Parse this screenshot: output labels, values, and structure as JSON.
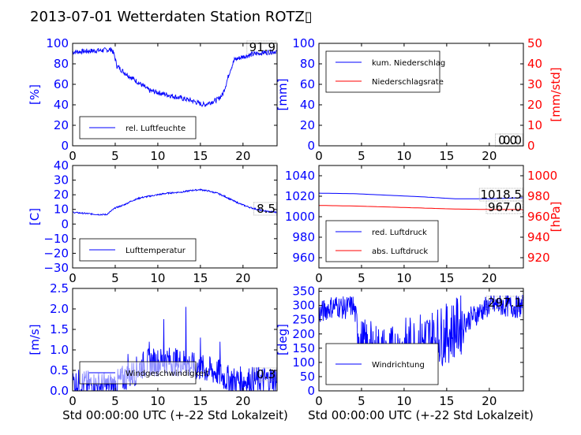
{
  "figure": {
    "title": "2013-07-01 Wetterdaten Station ROTZ▯",
    "xlabel": "Std 00:00:00 UTC (+-22 Std Lokalzeit)"
  },
  "chart_data": [
    {
      "type": "line",
      "id": "humidity",
      "ylabel": "[%]",
      "xlim": [
        0,
        24
      ],
      "ylim": [
        0,
        100
      ],
      "xticks": [
        "0",
        "5",
        "10",
        "15",
        "20"
      ],
      "yticks": [
        "0",
        "20",
        "40",
        "60",
        "80",
        "100"
      ],
      "legend": [
        "rel. Luftfeuchte"
      ],
      "legend_position": "lower-center",
      "annotation": "91.9",
      "series": [
        {
          "name": "rel. Luftfeuchte",
          "color": "#0000ff",
          "noise": 2.5,
          "x": [
            0,
            1,
            2,
            3,
            4,
            4.6,
            4.9,
            5.2,
            6,
            7,
            8,
            9,
            10,
            11,
            12,
            13,
            14,
            15,
            15.5,
            16,
            17,
            17.6,
            18,
            18.5,
            19,
            20,
            21,
            22,
            23,
            24
          ],
          "y": [
            91.5,
            92,
            92.5,
            93,
            93.5,
            94,
            88,
            78,
            72,
            66,
            60,
            54,
            52,
            50,
            48,
            46,
            44,
            41,
            40,
            42,
            45,
            50,
            60,
            74,
            84,
            87,
            89,
            90.5,
            91.5,
            92
          ]
        }
      ]
    },
    {
      "type": "line",
      "id": "precipitation",
      "ylabel": "[mm]",
      "y2label": "[mm/std]",
      "xlim": [
        0,
        24
      ],
      "ylim": [
        0,
        100
      ],
      "y2lim": [
        0,
        50
      ],
      "xticks": [
        "0",
        "5",
        "10",
        "15",
        "20"
      ],
      "yticks": [
        "0",
        "20",
        "40",
        "60",
        "80",
        "100"
      ],
      "y2ticks": [
        "0",
        "10",
        "20",
        "30",
        "40",
        "50"
      ],
      "legend": [
        "kum. Niederschlag",
        "Niederschlagsrate"
      ],
      "legend_position": "upper-left",
      "annotations": [
        "0.0",
        "0.0"
      ],
      "series": [
        {
          "name": "kum. Niederschlag",
          "color": "#0000ff",
          "axis": "left",
          "x": [
            0,
            24
          ],
          "y": [
            0,
            0
          ]
        },
        {
          "name": "Niederschlagsrate",
          "color": "#ff0000",
          "axis": "right",
          "x": [
            0,
            24
          ],
          "y": [
            0,
            0
          ]
        }
      ]
    },
    {
      "type": "line",
      "id": "temperature",
      "ylabel": "[C]",
      "xlim": [
        0,
        24
      ],
      "ylim": [
        -30,
        40
      ],
      "xticks": [
        "0",
        "5",
        "10",
        "15",
        "20"
      ],
      "yticks": [
        "−30",
        "−20",
        "−10",
        "0",
        "10",
        "20",
        "30",
        "40"
      ],
      "yticks_values": [
        -30,
        -20,
        -10,
        0,
        10,
        20,
        30,
        40
      ],
      "legend": [
        "Lufttemperatur"
      ],
      "legend_position": "lower-center",
      "annotation": "8.5",
      "series": [
        {
          "name": "Lufttemperatur",
          "color": "#0000ff",
          "noise": 0.5,
          "x": [
            0,
            1,
            2,
            3,
            4,
            5,
            6,
            7,
            8,
            9,
            10,
            11,
            12,
            13,
            14,
            15,
            16,
            17,
            18,
            19,
            20,
            21,
            22,
            23,
            24
          ],
          "y": [
            8,
            7.5,
            7,
            6.5,
            6.5,
            11,
            13,
            16,
            18,
            19,
            20,
            21,
            21.5,
            22,
            23,
            23.5,
            22.5,
            21,
            18.5,
            15.5,
            13,
            11,
            9.5,
            8.5,
            8
          ]
        }
      ]
    },
    {
      "type": "line",
      "id": "pressure",
      "ylabel": "",
      "y2label": "[hPa]",
      "xlim": [
        0,
        24
      ],
      "ylim": [
        950,
        1050
      ],
      "y2lim": [
        910,
        1010
      ],
      "xticks": [
        "0",
        "5",
        "10",
        "15",
        "20"
      ],
      "yticks": [
        "960",
        "980",
        "1000",
        "1020",
        "1040"
      ],
      "yticks_values": [
        960,
        980,
        1000,
        1020,
        1040
      ],
      "y2ticks": [
        "920",
        "940",
        "960",
        "980",
        "1000"
      ],
      "y2ticks_values": [
        920,
        940,
        960,
        980,
        1000
      ],
      "legend": [
        "red. Luftdruck",
        "abs. Luftdruck"
      ],
      "legend_position": "lower-left",
      "annotations": [
        "1018.5",
        "967.0"
      ],
      "series": [
        {
          "name": "red. Luftdruck",
          "color": "#0000ff",
          "axis": "left",
          "x": [
            0,
            4,
            8,
            12,
            16,
            20,
            24
          ],
          "y": [
            1023,
            1022.5,
            1021,
            1019.5,
            1017.5,
            1017.5,
            1018.5
          ]
        },
        {
          "name": "abs. Luftdruck",
          "color": "#ff0000",
          "axis": "right",
          "x": [
            0,
            4,
            8,
            12,
            16,
            20,
            24
          ],
          "y": [
            971,
            970.5,
            969.5,
            968.5,
            967.5,
            967,
            967
          ]
        }
      ]
    },
    {
      "type": "line",
      "id": "windspeed",
      "ylabel": "[m/s]",
      "xlim": [
        0,
        24
      ],
      "ylim": [
        0,
        2.5
      ],
      "xticks": [
        "0",
        "5",
        "10",
        "15",
        "20"
      ],
      "yticks": [
        "0.0",
        "0.5",
        "1.0",
        "1.5",
        "2.0",
        "2.5"
      ],
      "yticks_values": [
        0,
        0.5,
        1.0,
        1.5,
        2.0,
        2.5
      ],
      "legend": [
        "Windgeschwindigkeit"
      ],
      "legend_position": "lower-center",
      "annotation": "0.3",
      "series": [
        {
          "name": "Windgeschwindigkeit",
          "color": "#0000ff",
          "noise": 0.35,
          "x": [
            0,
            2,
            4,
            5,
            6,
            7,
            8,
            9,
            10,
            11,
            12,
            13,
            14,
            15,
            16,
            17,
            18,
            19,
            20,
            22,
            24
          ],
          "y": [
            0.2,
            0.15,
            0.1,
            0.15,
            0.3,
            0.4,
            0.6,
            0.7,
            0.7,
            0.75,
            0.7,
            0.7,
            0.6,
            0.55,
            0.5,
            0.45,
            0.3,
            0.25,
            0.25,
            0.25,
            0.3
          ],
          "spikes": [
            [
              6.5,
              0.9
            ],
            [
              9,
              1.2
            ],
            [
              10.7,
              1.75
            ],
            [
              13.3,
              2.05
            ],
            [
              15,
              1.3
            ],
            [
              17.3,
              1.2
            ]
          ]
        }
      ]
    },
    {
      "type": "line",
      "id": "winddirection",
      "ylabel": "[deg]",
      "xlim": [
        0,
        24
      ],
      "ylim": [
        0,
        360
      ],
      "xticks": [
        "0",
        "5",
        "10",
        "15",
        "20"
      ],
      "yticks": [
        "0",
        "50",
        "100",
        "150",
        "200",
        "250",
        "300",
        "350"
      ],
      "yticks_values": [
        0,
        50,
        100,
        150,
        200,
        250,
        300,
        350
      ],
      "legend": [
        "Windrichtung"
      ],
      "legend_position": "lower-left",
      "annotation": "297.1",
      "series": [
        {
          "name": "Windrichtung",
          "color": "#0000ff",
          "noise": 90,
          "x": [
            0,
            1,
            2,
            3,
            4,
            4.5,
            5,
            6,
            7,
            8,
            9,
            10,
            11,
            12,
            13,
            14,
            15,
            16,
            17,
            18,
            19,
            20,
            21,
            22,
            23,
            24
          ],
          "y": [
            270,
            290,
            300,
            290,
            300,
            240,
            150,
            140,
            130,
            120,
            130,
            150,
            160,
            170,
            180,
            190,
            200,
            220,
            240,
            260,
            280,
            300,
            300,
            300,
            295,
            297
          ]
        }
      ]
    }
  ]
}
